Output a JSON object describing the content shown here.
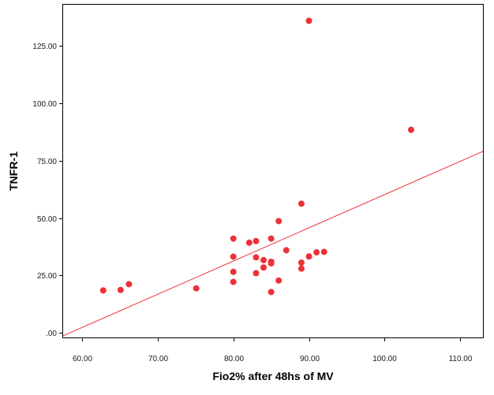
{
  "chart_data": {
    "type": "scatter",
    "title": "",
    "xlabel": "Fio2% after 48hs of  MV",
    "ylabel": "TNFR-1",
    "xlim": [
      57.5,
      113
    ],
    "ylim": [
      -2,
      143
    ],
    "x_ticks": [
      60,
      70,
      80,
      90,
      100,
      110
    ],
    "x_tick_labels": [
      "60.00",
      "70.00",
      "80.00",
      "90.00",
      "100.00",
      "110.00"
    ],
    "y_ticks": [
      0,
      25,
      50,
      75,
      100,
      125
    ],
    "y_tick_labels": [
      ".00",
      "25.00",
      "50.00",
      "75.00",
      "100.00",
      "125.00"
    ],
    "grid": false,
    "legend": "none",
    "series": [
      {
        "points": [
          [
            62.8,
            18.5
          ],
          [
            65.1,
            18.7
          ],
          [
            66.2,
            21.2
          ],
          [
            75.1,
            19.4
          ],
          [
            80.0,
            41.1
          ],
          [
            80.0,
            33.2
          ],
          [
            80.0,
            26.6
          ],
          [
            80.0,
            22.2
          ],
          [
            82.1,
            39.3
          ],
          [
            83.0,
            40.0
          ],
          [
            83.0,
            32.9
          ],
          [
            83.0,
            26.0
          ],
          [
            84.0,
            31.7
          ],
          [
            84.0,
            28.5
          ],
          [
            85.0,
            41.1
          ],
          [
            85.0,
            31.0
          ],
          [
            85.0,
            30.3
          ],
          [
            85.0,
            17.8
          ],
          [
            86.0,
            48.7
          ],
          [
            86.0,
            22.8
          ],
          [
            87.0,
            36.0
          ],
          [
            89.0,
            56.3
          ],
          [
            89.0,
            30.6
          ],
          [
            89.0,
            28.0
          ],
          [
            90.0,
            136.0
          ],
          [
            90.0,
            33.3
          ],
          [
            91.0,
            35.1
          ],
          [
            92.0,
            35.3
          ],
          [
            103.5,
            88.5
          ]
        ]
      }
    ],
    "fit_line": {
      "x": [
        57.5,
        113
      ],
      "y": [
        -1.3,
        79.1
      ]
    },
    "colors": {
      "marker": "#ee3138",
      "fit_line": "#ee3138",
      "frame": "#000000",
      "tick_label": "#1a1a1a",
      "axis_title": "#000000",
      "background": "#ffffff"
    }
  }
}
